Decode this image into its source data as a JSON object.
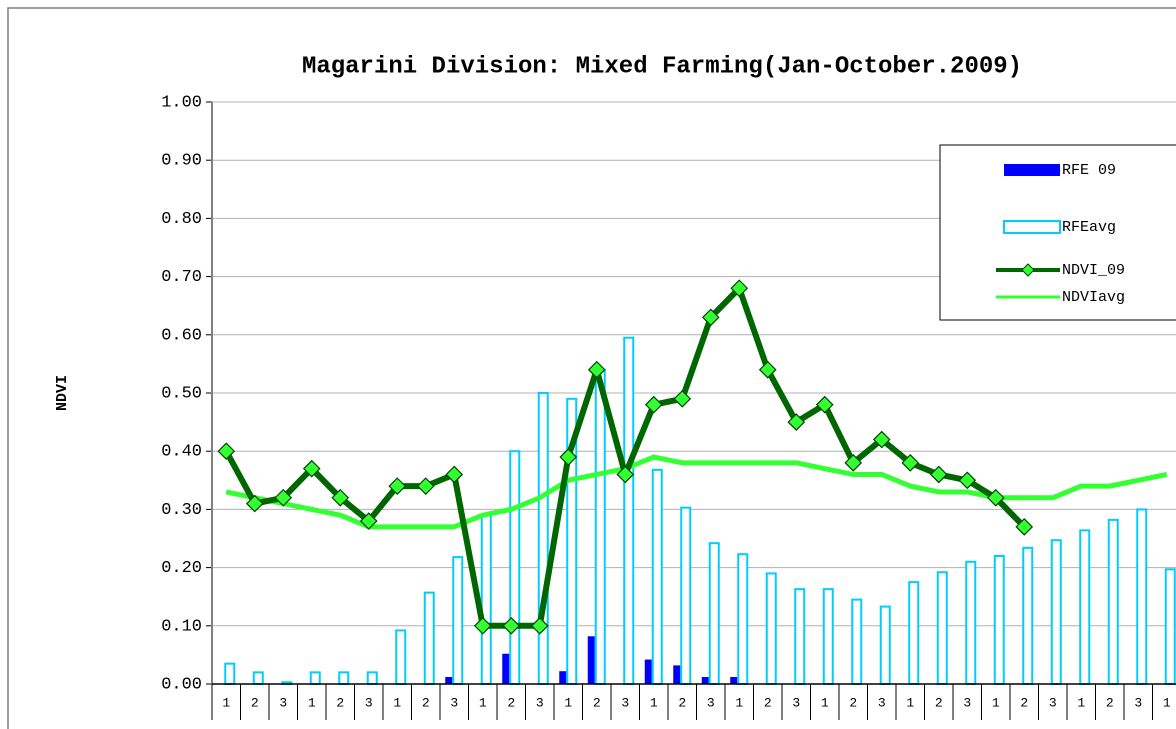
{
  "chart_data": {
    "type": "bar",
    "title": "Magarini Division: Mixed Farming(Jan-October.2009)",
    "y_label": "NDVI",
    "categories": [
      "1",
      "2",
      "3",
      "1",
      "2",
      "3",
      "1",
      "2",
      "3",
      "1",
      "2",
      "3",
      "1",
      "2",
      "3",
      "1",
      "2",
      "3",
      "1",
      "2",
      "3",
      "1",
      "2",
      "3",
      "1",
      "2",
      "3",
      "1",
      "2",
      "3",
      "1",
      "2",
      "3",
      "1"
    ],
    "ylim": [
      0,
      1
    ],
    "yticks": [
      {
        "value": 0,
        "label": "0.00"
      },
      {
        "value": 0.1,
        "label": "0.10"
      },
      {
        "value": 0.2,
        "label": "0.20"
      },
      {
        "value": 0.3,
        "label": "0.30"
      },
      {
        "value": 0.4,
        "label": "0.40"
      },
      {
        "value": 0.5,
        "label": "0.50"
      },
      {
        "value": 0.6,
        "label": "0.60"
      },
      {
        "value": 0.7,
        "label": "0.70"
      },
      {
        "value": 0.8,
        "label": "0.80"
      },
      {
        "value": 0.9,
        "label": "0.90"
      },
      {
        "value": 1,
        "label": "1.00"
      }
    ],
    "grid": true,
    "legend": "upper right",
    "series": [
      {
        "name": "RFE 09",
        "type": "bar",
        "color": "#0000ff",
        "values": [
          0,
          0,
          0,
          0,
          0,
          0,
          0,
          0,
          0.012,
          0,
          0.052,
          0,
          0.022,
          0.082,
          0,
          0.042,
          0.032,
          0.012,
          0.012,
          null,
          null,
          null,
          null,
          null,
          null,
          null,
          null,
          null,
          null,
          null,
          null,
          null,
          null,
          null
        ]
      },
      {
        "name": "RFEavg",
        "type": "bar",
        "color": "#00ccff",
        "values": [
          0.035,
          0.02,
          0.003,
          0.02,
          0.02,
          0.02,
          0.092,
          0.157,
          0.218,
          0.29,
          0.4,
          0.5,
          0.49,
          0.54,
          0.595,
          0.368,
          0.303,
          0.242,
          0.223,
          0.19,
          0.163,
          0.163,
          0.145,
          0.133,
          0.175,
          0.192,
          0.21,
          0.22,
          0.234,
          0.247,
          0.264,
          0.282,
          0.3,
          0.197
        ]
      },
      {
        "name": "NDVI_09",
        "type": "line",
        "color": "#006600",
        "marker_color": "#33ff33",
        "values": [
          0.4,
          0.31,
          0.32,
          0.37,
          0.32,
          0.28,
          0.34,
          0.34,
          0.36,
          0.1,
          0.1,
          0.1,
          0.39,
          0.54,
          0.36,
          0.48,
          0.49,
          0.63,
          0.68,
          0.54,
          0.45,
          0.48,
          0.38,
          0.42,
          0.38,
          0.36,
          0.35,
          0.32,
          0.27,
          null,
          null,
          null,
          null,
          null
        ]
      },
      {
        "name": "NDVIavg",
        "type": "line",
        "color": "#33ff33",
        "values": [
          0.33,
          0.32,
          0.31,
          0.3,
          0.29,
          0.27,
          0.27,
          0.27,
          0.27,
          0.29,
          0.3,
          0.32,
          0.35,
          0.36,
          0.37,
          0.39,
          0.38,
          0.38,
          0.38,
          0.38,
          0.38,
          0.37,
          0.36,
          0.36,
          0.34,
          0.33,
          0.33,
          0.32,
          0.32,
          0.32,
          0.34,
          0.34,
          0.35,
          0.36
        ]
      }
    ]
  }
}
